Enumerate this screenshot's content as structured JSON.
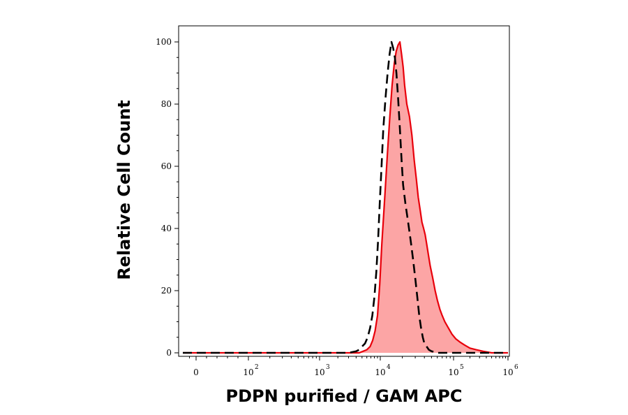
{
  "chart_data": {
    "type": "area",
    "title": "",
    "xlabel": "PDPN purified / GAM APC",
    "ylabel": "Relative Cell Count",
    "x_scale": "biexponential",
    "xlim": [
      -60,
      1000000
    ],
    "ylim": [
      0,
      105
    ],
    "grid": false,
    "y_ticks": [
      {
        "value": 0,
        "label": "0"
      },
      {
        "value": 20,
        "label": "20"
      },
      {
        "value": 40,
        "label": "40"
      },
      {
        "value": 60,
        "label": "60"
      },
      {
        "value": 80,
        "label": "80"
      },
      {
        "value": 100,
        "label": "100"
      }
    ],
    "x_ticks": [
      {
        "value": 0,
        "base": "0",
        "exp": ""
      },
      {
        "value": 100,
        "base": "10",
        "exp": "2"
      },
      {
        "value": 1000,
        "base": "10",
        "exp": "3"
      },
      {
        "value": 10000,
        "base": "10",
        "exp": "4"
      },
      {
        "value": 100000,
        "base": "10",
        "exp": "5"
      },
      {
        "value": 1000000,
        "base": "10",
        "exp": "6"
      }
    ],
    "series": [
      {
        "style": "filled",
        "color": "#e8000b",
        "fill": "#fca5a5",
        "x": [
          -60,
          0,
          500,
          3000,
          4500,
          5200,
          6000,
          6800,
          7500,
          8200,
          9000,
          9800,
          10500,
          11500,
          12500,
          13500,
          14500,
          15500,
          16500,
          17500,
          18500,
          19500,
          20500,
          21500,
          23000,
          25000,
          27000,
          29000,
          31000,
          33000,
          35000,
          37000,
          39000,
          41000,
          43000,
          45000,
          48000,
          52000,
          56000,
          60000,
          65000,
          70000,
          76000,
          85000,
          95000,
          110000,
          130000,
          160000,
          200000,
          260000,
          350000,
          500000,
          1000000
        ],
        "y": [
          0,
          0,
          0,
          0,
          0,
          0.5,
          1,
          2,
          4,
          7,
          12,
          22,
          35,
          50,
          64,
          76,
          86,
          93,
          97,
          99,
          100,
          96,
          92,
          86,
          80,
          76,
          70,
          62,
          56,
          50,
          46,
          42,
          40,
          38,
          35,
          32,
          28,
          24,
          20,
          17,
          14,
          12,
          10,
          8,
          6,
          4.5,
          3.5,
          2.5,
          1.5,
          1,
          0.5,
          0,
          0
        ]
      },
      {
        "style": "dashed",
        "color": "#000000",
        "x": [
          -60,
          0,
          500,
          3000,
          4000,
          4500,
          5000,
          5600,
          6200,
          6800,
          7400,
          8000,
          8600,
          9200,
          9800,
          10400,
          11000,
          11800,
          12600,
          13400,
          14200,
          15000,
          15800,
          16600,
          17500,
          18500,
          19500,
          20500,
          22000,
          24000,
          26000,
          28000,
          30000,
          32000,
          34000,
          36000,
          38000,
          40000,
          43000,
          46000,
          50000,
          55000,
          60000,
          70000,
          85000,
          110000,
          150000,
          1000000
        ],
        "y": [
          0,
          0,
          0,
          0,
          0.5,
          1,
          2,
          3,
          5,
          8,
          12,
          18,
          26,
          36,
          48,
          60,
          72,
          82,
          90,
          96,
          100,
          98,
          95,
          90,
          82,
          72,
          62,
          54,
          48,
          42,
          36,
          30,
          24,
          18,
          12,
          8,
          5,
          3,
          2,
          1,
          0.5,
          0.3,
          0,
          0,
          0,
          0,
          0,
          0
        ]
      }
    ]
  }
}
